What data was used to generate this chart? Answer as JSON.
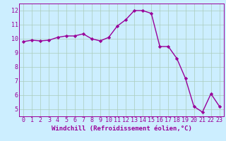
{
  "x": [
    0,
    1,
    2,
    3,
    4,
    5,
    6,
    7,
    8,
    9,
    10,
    11,
    12,
    13,
    14,
    15,
    16,
    17,
    18,
    19,
    20,
    21,
    22,
    23
  ],
  "y": [
    9.8,
    9.9,
    9.85,
    9.9,
    10.1,
    10.2,
    10.2,
    10.35,
    10.0,
    9.85,
    10.1,
    10.9,
    11.35,
    12.0,
    12.0,
    11.8,
    9.45,
    9.45,
    8.6,
    7.2,
    5.2,
    4.8,
    6.1,
    5.2
  ],
  "line_color": "#990099",
  "marker": "D",
  "marker_size": 2.2,
  "bg_color": "#cceeff",
  "grid_color": "#aaccbb",
  "xlabel": "Windchill (Refroidissement éolien,°C)",
  "xlim": [
    -0.5,
    23.5
  ],
  "ylim": [
    4.5,
    12.5
  ],
  "xticks": [
    0,
    1,
    2,
    3,
    4,
    5,
    6,
    7,
    8,
    9,
    10,
    11,
    12,
    13,
    14,
    15,
    16,
    17,
    18,
    19,
    20,
    21,
    22,
    23
  ],
  "yticks": [
    5,
    6,
    7,
    8,
    9,
    10,
    11,
    12
  ],
  "xlabel_fontsize": 6.5,
  "tick_fontsize": 6.0,
  "line_width": 1.0
}
